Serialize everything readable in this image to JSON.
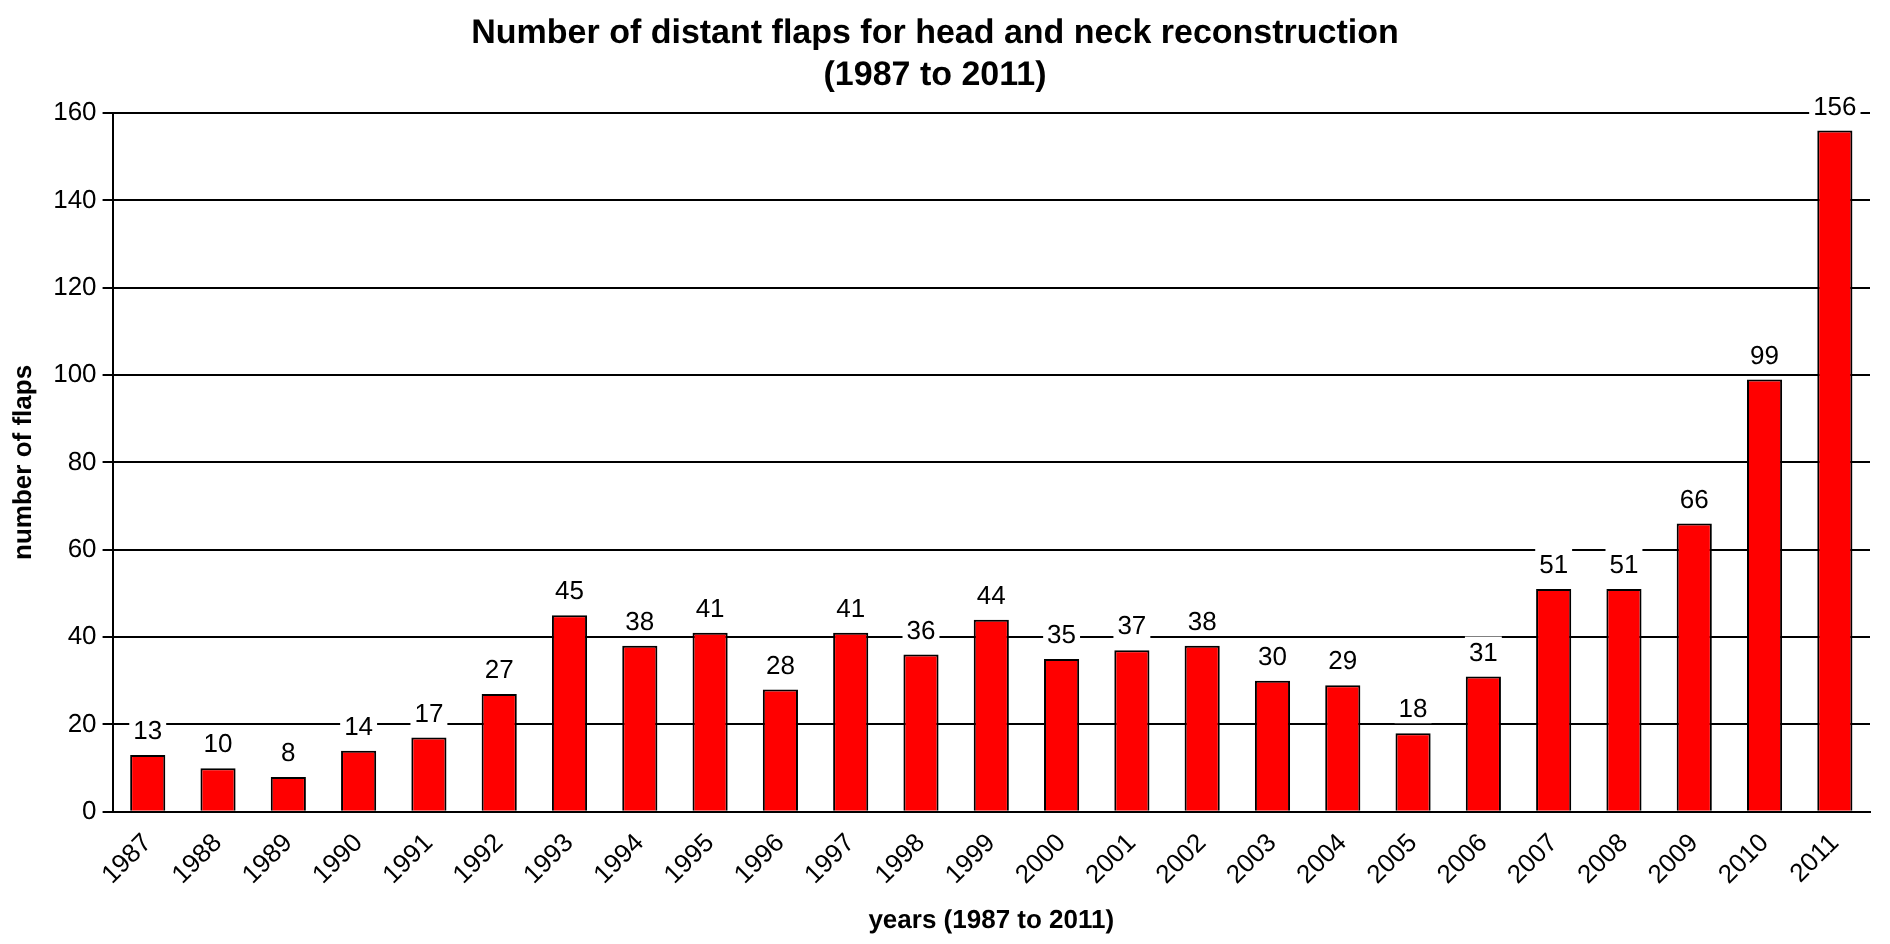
{
  "chart_data": {
    "type": "bar",
    "title": "Number of distant flaps for head and neck reconstruction\n(1987 to 2011)",
    "xlabel": "years (1987 to 2011)",
    "ylabel": "number of flaps",
    "categories": [
      "1987",
      "1988",
      "1989",
      "1990",
      "1991",
      "1992",
      "1993",
      "1994",
      "1995",
      "1996",
      "1997",
      "1998",
      "1999",
      "2000",
      "2001",
      "2002",
      "2003",
      "2004",
      "2005",
      "2006",
      "2007",
      "2008",
      "2009",
      "2010",
      "2011"
    ],
    "values": [
      13,
      10,
      8,
      14,
      17,
      27,
      45,
      38,
      41,
      28,
      41,
      36,
      44,
      35,
      37,
      38,
      30,
      29,
      18,
      31,
      51,
      51,
      66,
      99,
      156
    ],
    "color": "#ff0000",
    "ylim": [
      0,
      160
    ],
    "yticks": [
      0,
      20,
      40,
      60,
      80,
      100,
      120,
      140,
      160
    ],
    "grid": "y",
    "data_labels": true,
    "legend": false
  }
}
